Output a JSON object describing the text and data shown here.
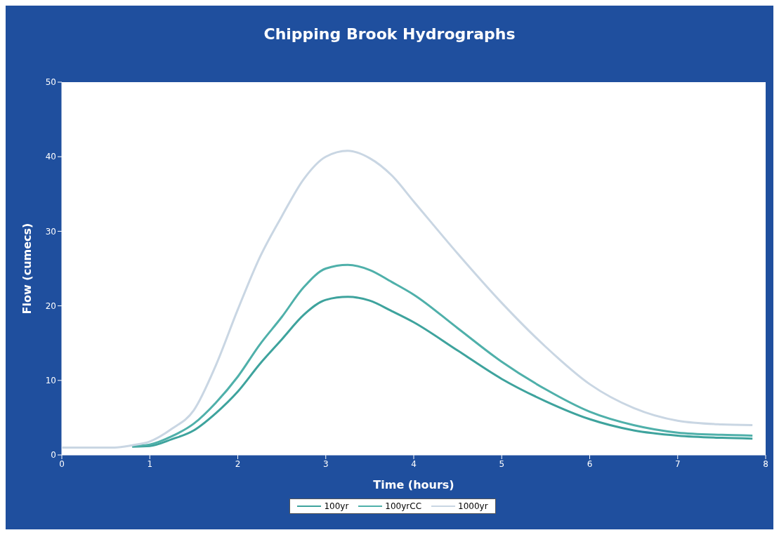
{
  "chart_data": {
    "type": "line",
    "title": "Chipping Brook Hydrographs",
    "xlabel": "Time (hours)",
    "ylabel": "Flow (cumecs)",
    "x": [
      0,
      0.6,
      0.8,
      1,
      1.25,
      1.5,
      1.75,
      2,
      2.25,
      2.5,
      2.75,
      3,
      3.25,
      3.5,
      3.75,
      4,
      4.5,
      5,
      5.5,
      6,
      6.5,
      7,
      7.5,
      7.85
    ],
    "series": [
      {
        "name": "100yr",
        "color": "#3ea39d",
        "values": [
          null,
          null,
          1.1,
          1.2,
          2.1,
          3.3,
          5.6,
          8.5,
          12.2,
          15.5,
          18.8,
          20.8,
          21.2,
          20.7,
          19.3,
          17.8,
          14,
          10.2,
          7.2,
          4.8,
          3.3,
          2.6,
          2.3,
          2.2
        ]
      },
      {
        "name": "100yrCC",
        "color": "#4fb0aa",
        "values": [
          null,
          null,
          1.2,
          1.4,
          2.5,
          4.2,
          7,
          10.5,
          14.8,
          18.5,
          22.5,
          25,
          25.5,
          24.8,
          23.2,
          21.5,
          17,
          12.5,
          8.8,
          5.8,
          4,
          3,
          2.7,
          2.6
        ]
      },
      {
        "name": "1000yr",
        "color": "#c9d6e3",
        "values": [
          1,
          1,
          1.3,
          1.8,
          3.5,
          6,
          12,
          19.5,
          26.5,
          32,
          37,
          40,
          40.8,
          39.8,
          37.5,
          34,
          27,
          20.4,
          14.5,
          9.5,
          6.3,
          4.6,
          4.1,
          4
        ]
      }
    ],
    "xlim": [
      0,
      8
    ],
    "xticks": [
      0,
      1,
      2,
      3,
      4,
      5,
      6,
      7,
      8
    ],
    "ylim": [
      0,
      50
    ],
    "yticks": [
      0,
      10,
      20,
      30,
      40,
      50
    ],
    "grid": false,
    "legend": "bottom",
    "marker": "none",
    "line_style": "solid"
  }
}
